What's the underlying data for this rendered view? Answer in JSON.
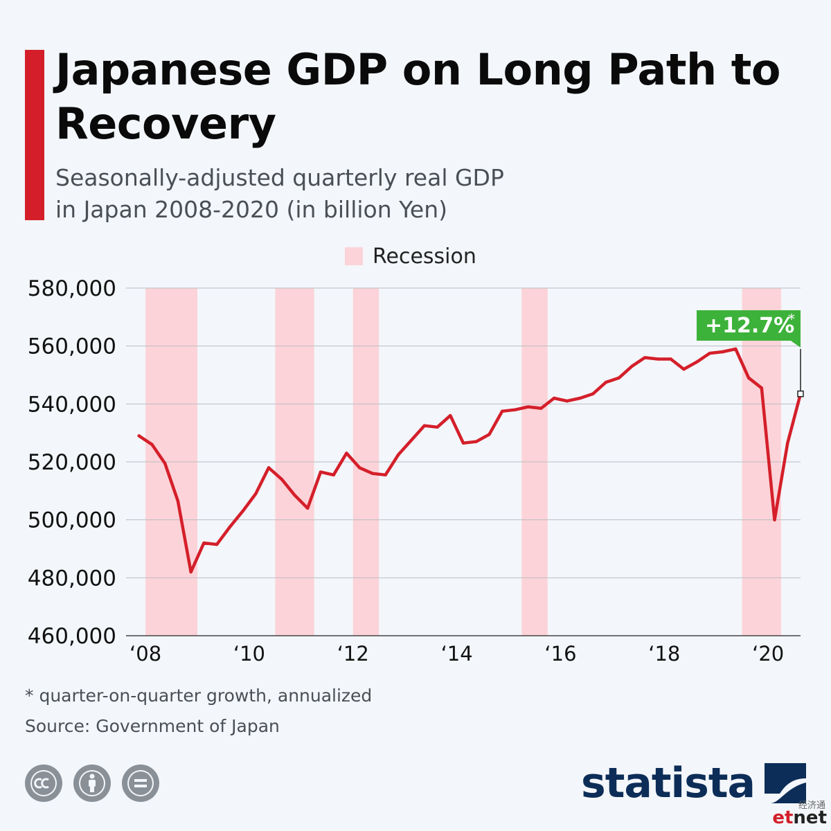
{
  "header": {
    "title": "Japanese GDP on Long Path to Recovery",
    "subtitle_line1": "Seasonally-adjusted quarterly real GDP",
    "subtitle_line2": "in Japan 2008-2020 (in billion Yen)"
  },
  "legend": {
    "recession_label": "Recession"
  },
  "annotation": {
    "text": "+12.7%",
    "marker": "*"
  },
  "footer": {
    "footnote": "* quarter-on-quarter growth, annualized",
    "source": "Source: Government of Japan",
    "brand": "statista",
    "watermark_cn": "经济通",
    "watermark_net_e": "et",
    "watermark_net_rest": "net"
  },
  "colors": {
    "line": "#d41f2a",
    "recession": "#fcd3d8",
    "annotation": "#3db23a",
    "grid": "#b9bec5",
    "accent": "#d41f2a"
  },
  "icons": [
    "cc-icon",
    "attribution-icon",
    "no-derivatives-icon",
    "statista-logo-icon"
  ],
  "chart_data": {
    "type": "line",
    "title": "Japanese GDP on Long Path to Recovery",
    "xlabel": "",
    "ylabel": "",
    "ylim": [
      460000,
      580000
    ],
    "yticks": [
      460000,
      480000,
      500000,
      520000,
      540000,
      560000,
      580000
    ],
    "ytick_labels": [
      "460,000",
      "480,000",
      "500,000",
      "520,000",
      "540,000",
      "560,000",
      "580,000"
    ],
    "xlim": [
      2007.625,
      2020.625
    ],
    "xticks": [
      2008,
      2010,
      2012,
      2014,
      2016,
      2018,
      2020
    ],
    "xtick_labels": [
      "‘08",
      "‘10",
      "‘12",
      "‘14",
      "‘16",
      "‘18",
      "‘20"
    ],
    "grid": true,
    "legend_position": "top-center",
    "recessions": [
      [
        2008.0,
        2009.0
      ],
      [
        2010.5,
        2011.25
      ],
      [
        2012.0,
        2012.5
      ],
      [
        2015.25,
        2015.75
      ],
      [
        2019.5,
        2020.25
      ]
    ],
    "series": [
      {
        "name": "",
        "x": [
          2007.875,
          2008.125,
          2008.375,
          2008.625,
          2008.875,
          2009.125,
          2009.375,
          2009.625,
          2009.875,
          2010.125,
          2010.375,
          2010.625,
          2010.875,
          2011.125,
          2011.375,
          2011.625,
          2011.875,
          2012.125,
          2012.375,
          2012.625,
          2012.875,
          2013.125,
          2013.375,
          2013.625,
          2013.875,
          2014.125,
          2014.375,
          2014.625,
          2014.875,
          2015.125,
          2015.375,
          2015.625,
          2015.875,
          2016.125,
          2016.375,
          2016.625,
          2016.875,
          2017.125,
          2017.375,
          2017.625,
          2017.875,
          2018.125,
          2018.375,
          2018.625,
          2018.875,
          2019.125,
          2019.375,
          2019.625,
          2019.875,
          2020.125,
          2020.375
        ],
        "values": [
          529000,
          526000,
          519500,
          506500,
          482000,
          492000,
          491500,
          497500,
          503000,
          509000,
          518000,
          514000,
          508500,
          504000,
          516500,
          515500,
          523000,
          518000,
          516000,
          515500,
          522500,
          527500,
          532500,
          532000,
          536000,
          526500,
          527000,
          529500,
          537500,
          538000,
          539000,
          538500,
          542000,
          541000,
          542000,
          543500,
          547500,
          549000,
          553000,
          556000,
          555500,
          555500,
          552000,
          554500,
          557500,
          558000,
          559000,
          549000,
          545500,
          500000,
          526500
        ]
      }
    ],
    "last_point": [
      2020.625,
      543500
    ],
    "annotation_from_value": 559000
  }
}
